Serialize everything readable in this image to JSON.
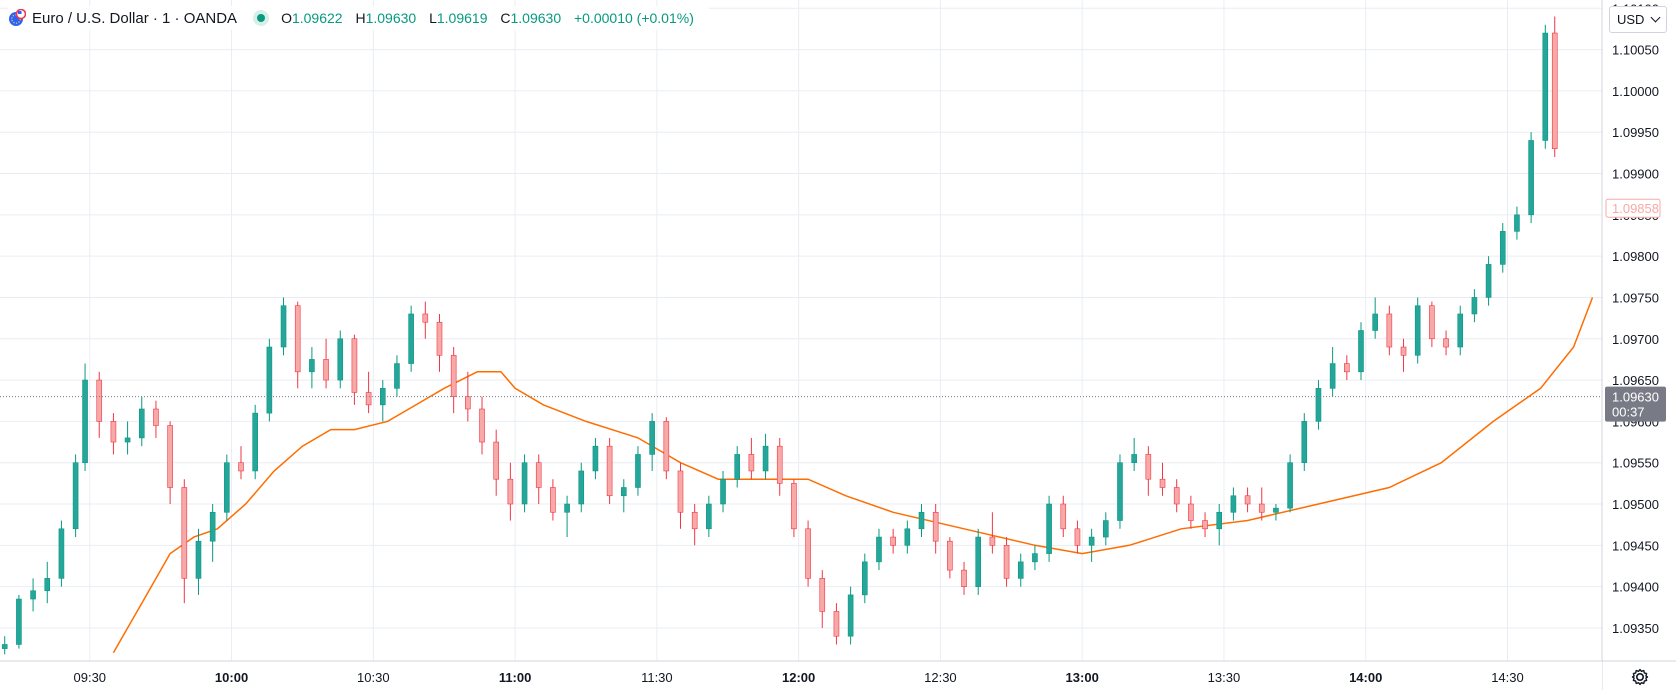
{
  "header": {
    "title": "Euro / U.S. Dollar · 1 · OANDA",
    "symbol_icon": "eur-usd-flags-icon",
    "status_icon": "market-open-dot-icon",
    "ohlc": {
      "o_label": "O",
      "o": "1.09622",
      "h_label": "H",
      "h": "1.09630",
      "l_label": "L",
      "l": "1.09619",
      "c_label": "C",
      "c": "1.09630",
      "change": "+0.00010 (+0.01%)"
    }
  },
  "currency_selector": {
    "value": "USD"
  },
  "settings_icon": "gear-icon",
  "colors": {
    "up": "#26a69a",
    "down": "#f7a9a7",
    "up_border": "#089981",
    "down_border": "#f23645",
    "ma": "#ff6d00",
    "grid": "#e9edf3",
    "axis_text": "#131722"
  },
  "chart_data": {
    "type": "candlestick",
    "symbol": "EUR/USD",
    "timeframe": "1",
    "exchange": "OANDA",
    "price_axis": {
      "ticks": [
        "1.10100",
        "1.10050",
        "1.10000",
        "1.09950",
        "1.09900",
        "1.09850",
        "1.09800",
        "1.09750",
        "1.09700",
        "1.09650",
        "1.09600",
        "1.09550",
        "1.09500",
        "1.09450",
        "1.09400",
        "1.09350"
      ],
      "range": [
        1.0931,
        1.1011
      ]
    },
    "time_axis": {
      "ticks": [
        {
          "label": "09:30",
          "bold": false
        },
        {
          "label": "10:00",
          "bold": true
        },
        {
          "label": "10:30",
          "bold": false
        },
        {
          "label": "11:00",
          "bold": true
        },
        {
          "label": "11:30",
          "bold": false
        },
        {
          "label": "12:00",
          "bold": true
        },
        {
          "label": "12:30",
          "bold": false
        },
        {
          "label": "13:00",
          "bold": true
        },
        {
          "label": "13:30",
          "bold": false
        },
        {
          "label": "14:00",
          "bold": true
        },
        {
          "label": "14:30",
          "bold": false
        }
      ],
      "range": [
        "09:11",
        "14:50"
      ]
    },
    "price_labels": [
      {
        "value": "1.09858",
        "kind": "reference",
        "color": "#f7a9a7"
      },
      {
        "value": "1.09630",
        "kind": "last",
        "countdown": "00:37",
        "color": "#787b86"
      }
    ],
    "moving_average": {
      "color": "#ff6d00",
      "points": [
        [
          "09:35",
          1.0932
        ],
        [
          "09:41",
          1.0938
        ],
        [
          "09:47",
          1.0944
        ],
        [
          "09:52",
          1.0946
        ],
        [
          "09:57",
          1.0947
        ],
        [
          "10:03",
          1.095
        ],
        [
          "10:09",
          1.0954
        ],
        [
          "10:15",
          1.0957
        ],
        [
          "10:21",
          1.0959
        ],
        [
          "10:26",
          1.0959
        ],
        [
          "10:33",
          1.096
        ],
        [
          "10:39",
          1.0962
        ],
        [
          "10:45",
          1.0964
        ],
        [
          "10:52",
          1.0966
        ],
        [
          "10:57",
          1.0966
        ],
        [
          "11:00",
          1.0964
        ],
        [
          "11:06",
          1.0962
        ],
        [
          "11:15",
          1.096
        ],
        [
          "11:26",
          1.0958
        ],
        [
          "11:35",
          1.0955
        ],
        [
          "11:43",
          1.0953
        ],
        [
          "11:53",
          1.0953
        ],
        [
          "12:02",
          1.0953
        ],
        [
          "12:10",
          1.0951
        ],
        [
          "12:20",
          1.0949
        ],
        [
          "12:35",
          1.0947
        ],
        [
          "12:50",
          1.0945
        ],
        [
          "13:00",
          1.0944
        ],
        [
          "13:10",
          1.0945
        ],
        [
          "13:21",
          1.0947
        ],
        [
          "13:35",
          1.0948
        ],
        [
          "13:50",
          1.095
        ],
        [
          "14:05",
          1.0952
        ],
        [
          "14:16",
          1.0955
        ],
        [
          "14:27",
          1.096
        ],
        [
          "14:37",
          1.0964
        ],
        [
          "14:44",
          1.0969
        ],
        [
          "14:48",
          1.0975
        ]
      ]
    },
    "candles_sampled": [
      [
        "09:12",
        1.09325,
        1.0934,
        1.09318,
        1.0933
      ],
      [
        "09:15",
        1.0933,
        1.0939,
        1.09325,
        1.09385
      ],
      [
        "09:18",
        1.09385,
        1.0941,
        1.0937,
        1.09395
      ],
      [
        "09:21",
        1.09395,
        1.0943,
        1.0938,
        1.0941
      ],
      [
        "09:24",
        1.0941,
        1.0948,
        1.094,
        1.0947
      ],
      [
        "09:27",
        1.0947,
        1.0956,
        1.0946,
        1.0955
      ],
      [
        "09:29",
        1.0955,
        1.0967,
        1.0954,
        1.0965
      ],
      [
        "09:32",
        1.0965,
        1.0966,
        1.0958,
        1.096
      ],
      [
        "09:35",
        1.096,
        1.0961,
        1.0956,
        1.09575
      ],
      [
        "09:38",
        1.09575,
        1.096,
        1.0956,
        1.0958
      ],
      [
        "09:41",
        1.0958,
        1.0963,
        1.0957,
        1.09615
      ],
      [
        "09:44",
        1.09615,
        1.09625,
        1.0958,
        1.09595
      ],
      [
        "09:47",
        1.09595,
        1.096,
        1.095,
        1.0952
      ],
      [
        "09:50",
        1.0952,
        1.0953,
        1.0938,
        1.0941
      ],
      [
        "09:53",
        1.0941,
        1.0947,
        1.0939,
        1.09455
      ],
      [
        "09:56",
        1.09455,
        1.095,
        1.0943,
        1.0949
      ],
      [
        "09:59",
        1.0949,
        1.0956,
        1.0948,
        1.0955
      ],
      [
        "10:02",
        1.0955,
        1.0957,
        1.0953,
        1.0954
      ],
      [
        "10:05",
        1.0954,
        1.0962,
        1.0953,
        1.0961
      ],
      [
        "10:08",
        1.0961,
        1.097,
        1.096,
        1.0969
      ],
      [
        "10:11",
        1.0969,
        1.0975,
        1.0968,
        1.0974
      ],
      [
        "10:14",
        1.0974,
        1.09745,
        1.0964,
        1.0966
      ],
      [
        "10:17",
        1.0966,
        1.0969,
        1.0964,
        1.09675
      ],
      [
        "10:20",
        1.09675,
        1.097,
        1.0964,
        1.0965
      ],
      [
        "10:23",
        1.0965,
        1.0971,
        1.0964,
        1.097
      ],
      [
        "10:26",
        1.097,
        1.09705,
        1.0962,
        1.09635
      ],
      [
        "10:29",
        1.09635,
        1.0966,
        1.0961,
        1.0962
      ],
      [
        "10:32",
        1.0962,
        1.0965,
        1.096,
        1.0964
      ],
      [
        "10:35",
        1.0964,
        1.0968,
        1.0963,
        1.0967
      ],
      [
        "10:38",
        1.0967,
        1.0974,
        1.0966,
        1.0973
      ],
      [
        "10:41",
        1.0973,
        1.09745,
        1.097,
        1.0972
      ],
      [
        "10:44",
        1.0972,
        1.0973,
        1.0966,
        1.0968
      ],
      [
        "10:47",
        1.0968,
        1.0969,
        1.0961,
        1.0963
      ],
      [
        "10:50",
        1.0963,
        1.0966,
        1.096,
        1.09615
      ],
      [
        "10:53",
        1.09615,
        1.0963,
        1.0956,
        1.09575
      ],
      [
        "10:56",
        1.09575,
        1.0959,
        1.0951,
        1.0953
      ],
      [
        "10:59",
        1.0953,
        1.0955,
        1.0948,
        1.095
      ],
      [
        "11:02",
        1.095,
        1.0956,
        1.0949,
        1.0955
      ],
      [
        "11:05",
        1.0955,
        1.0956,
        1.095,
        1.0952
      ],
      [
        "11:08",
        1.0952,
        1.0953,
        1.0948,
        1.0949
      ],
      [
        "11:11",
        1.0949,
        1.0951,
        1.0946,
        1.095
      ],
      [
        "11:14",
        1.095,
        1.0955,
        1.0949,
        1.0954
      ],
      [
        "11:17",
        1.0954,
        1.0958,
        1.0953,
        1.0957
      ],
      [
        "11:20",
        1.0957,
        1.0958,
        1.095,
        1.0951
      ],
      [
        "11:23",
        1.0951,
        1.0953,
        1.0949,
        1.0952
      ],
      [
        "11:26",
        1.0952,
        1.0957,
        1.0951,
        1.0956
      ],
      [
        "11:29",
        1.0956,
        1.0961,
        1.0954,
        1.096
      ],
      [
        "11:32",
        1.096,
        1.09605,
        1.0953,
        1.0954
      ],
      [
        "11:35",
        1.0954,
        1.0955,
        1.0947,
        1.0949
      ],
      [
        "11:38",
        1.0949,
        1.095,
        1.0945,
        1.0947
      ],
      [
        "11:41",
        1.0947,
        1.0951,
        1.0946,
        1.095
      ],
      [
        "11:44",
        1.095,
        1.0954,
        1.0949,
        1.0953
      ],
      [
        "11:47",
        1.0953,
        1.0957,
        1.0952,
        1.0956
      ],
      [
        "11:50",
        1.0956,
        1.0958,
        1.0953,
        1.0954
      ],
      [
        "11:53",
        1.0954,
        1.09585,
        1.0953,
        1.0957
      ],
      [
        "11:56",
        1.0957,
        1.0958,
        1.0951,
        1.09525
      ],
      [
        "11:59",
        1.09525,
        1.0953,
        1.0946,
        1.0947
      ],
      [
        "12:02",
        1.0947,
        1.0948,
        1.094,
        1.0941
      ],
      [
        "12:05",
        1.0941,
        1.0942,
        1.0935,
        1.0937
      ],
      [
        "12:08",
        1.0937,
        1.0938,
        1.0933,
        1.0934
      ],
      [
        "12:11",
        1.0934,
        1.094,
        1.0933,
        1.0939
      ],
      [
        "12:14",
        1.0939,
        1.0944,
        1.0938,
        1.0943
      ],
      [
        "12:17",
        1.0943,
        1.0947,
        1.0942,
        1.0946
      ],
      [
        "12:20",
        1.0946,
        1.0947,
        1.0944,
        1.0945
      ],
      [
        "12:23",
        1.0945,
        1.0948,
        1.0944,
        1.0947
      ],
      [
        "12:26",
        1.0947,
        1.095,
        1.0946,
        1.0949
      ],
      [
        "12:29",
        1.0949,
        1.095,
        1.0944,
        1.09455
      ],
      [
        "12:32",
        1.09455,
        1.0946,
        1.0941,
        1.0942
      ],
      [
        "12:35",
        1.0942,
        1.0943,
        1.0939,
        1.094
      ],
      [
        "12:38",
        1.094,
        1.0947,
        1.0939,
        1.0946
      ],
      [
        "12:41",
        1.0946,
        1.0949,
        1.0944,
        1.0945
      ],
      [
        "12:44",
        1.0945,
        1.0946,
        1.094,
        1.0941
      ],
      [
        "12:47",
        1.0941,
        1.0944,
        1.094,
        1.0943
      ],
      [
        "12:50",
        1.0943,
        1.0945,
        1.0942,
        1.0944
      ],
      [
        "12:53",
        1.0944,
        1.0951,
        1.0943,
        1.095
      ],
      [
        "12:56",
        1.095,
        1.0951,
        1.0946,
        1.0947
      ],
      [
        "12:59",
        1.0947,
        1.0948,
        1.0944,
        1.0945
      ],
      [
        "13:02",
        1.0945,
        1.0947,
        1.0943,
        1.0946
      ],
      [
        "13:05",
        1.0946,
        1.0949,
        1.0945,
        1.0948
      ],
      [
        "13:08",
        1.0948,
        1.0956,
        1.0947,
        1.0955
      ],
      [
        "13:11",
        1.0955,
        1.0958,
        1.0954,
        1.0956
      ],
      [
        "13:14",
        1.0956,
        1.0957,
        1.0951,
        1.0953
      ],
      [
        "13:17",
        1.0953,
        1.0955,
        1.0951,
        1.0952
      ],
      [
        "13:20",
        1.0952,
        1.0953,
        1.0949,
        1.095
      ],
      [
        "13:23",
        1.095,
        1.0951,
        1.0947,
        1.0948
      ],
      [
        "13:26",
        1.0948,
        1.0949,
        1.0946,
        1.0947
      ],
      [
        "13:29",
        1.0947,
        1.095,
        1.0945,
        1.0949
      ],
      [
        "13:32",
        1.0949,
        1.0952,
        1.0948,
        1.0951
      ],
      [
        "13:35",
        1.0951,
        1.0952,
        1.0949,
        1.095
      ],
      [
        "13:38",
        1.095,
        1.0952,
        1.0948,
        1.0949
      ],
      [
        "13:41",
        1.0949,
        1.095,
        1.0948,
        1.09495
      ],
      [
        "13:44",
        1.09495,
        1.0956,
        1.0949,
        1.0955
      ],
      [
        "13:47",
        1.0955,
        1.0961,
        1.0954,
        1.096
      ],
      [
        "13:50",
        1.096,
        1.0965,
        1.0959,
        1.0964
      ],
      [
        "13:53",
        1.0964,
        1.0969,
        1.0963,
        1.0967
      ],
      [
        "13:56",
        1.0967,
        1.0968,
        1.0965,
        1.0966
      ],
      [
        "13:59",
        1.0966,
        1.0972,
        1.0965,
        1.0971
      ],
      [
        "14:02",
        1.0971,
        1.0975,
        1.097,
        1.0973
      ],
      [
        "14:05",
        1.0973,
        1.0974,
        1.0968,
        1.0969
      ],
      [
        "14:08",
        1.0969,
        1.097,
        1.0966,
        1.0968
      ],
      [
        "14:11",
        1.0968,
        1.0975,
        1.0967,
        1.0974
      ],
      [
        "14:14",
        1.0974,
        1.09745,
        1.0969,
        1.097
      ],
      [
        "14:17",
        1.097,
        1.0971,
        1.0968,
        1.0969
      ],
      [
        "14:20",
        1.0969,
        1.0974,
        1.0968,
        1.0973
      ],
      [
        "14:23",
        1.0973,
        1.0976,
        1.0972,
        1.0975
      ],
      [
        "14:26",
        1.0975,
        1.098,
        1.0974,
        1.0979
      ],
      [
        "14:29",
        1.0979,
        1.0984,
        1.0978,
        1.0983
      ],
      [
        "14:32",
        1.0983,
        1.0986,
        1.0982,
        1.0985
      ],
      [
        "14:35",
        1.0985,
        1.0995,
        1.0984,
        1.0994
      ],
      [
        "14:38",
        1.0994,
        1.1008,
        1.0993,
        1.1007
      ],
      [
        "14:40",
        1.1007,
        1.1009,
        1.0992,
        1.0993
      ]
    ]
  }
}
